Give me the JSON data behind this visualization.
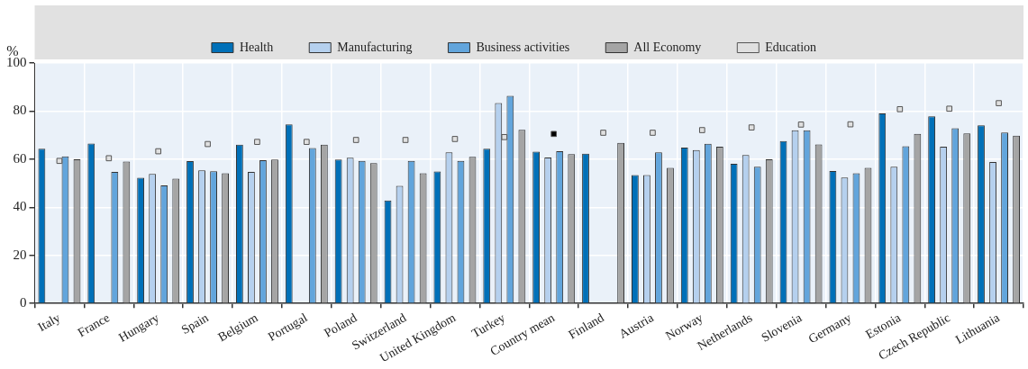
{
  "chart_data": {
    "type": "bar",
    "ylabel": "%",
    "categories": [
      "Italy",
      "France",
      "Hungary",
      "Spain",
      "Belgium",
      "Portugal",
      "Poland",
      "Switzerland",
      "United Kingdom",
      "Turkey",
      "Country mean",
      "Finland",
      "Austria",
      "Norway",
      "Netherlands",
      "Slovenia",
      "Germany",
      "Estonia",
      "Czech Republic",
      "Lithuania"
    ],
    "series": [
      {
        "name": "Health",
        "color": "#0070b8",
        "values": [
          64.4,
          66.5,
          52.3,
          59.2,
          66,
          74.5,
          59.9,
          42.8,
          54.9,
          64.4,
          63.1,
          62.3,
          53.4,
          64.8,
          58.1,
          67.5,
          55.1,
          79,
          77.8,
          74.1
        ]
      },
      {
        "name": "Manufacturing",
        "color": "#b5d0ee",
        "values": [
          null,
          null,
          53.9,
          55.4,
          54.7,
          null,
          60.6,
          48.9,
          62.9,
          83.3,
          60.7,
          null,
          53.4,
          63.8,
          61.7,
          72,
          52.4,
          56.9,
          65.2,
          58.8
        ]
      },
      {
        "name": "Business activities",
        "color": "#62a5dc",
        "values": [
          61.2,
          54.7,
          49.1,
          55,
          59.6,
          64.6,
          59.3,
          59.3,
          59.3,
          86.3,
          63.3,
          null,
          62.9,
          66.4,
          56.9,
          72,
          54.2,
          65.4,
          72.9,
          71.1
        ]
      },
      {
        "name": "All Economy",
        "color": "#a5a5a5",
        "values": [
          60,
          59,
          51.9,
          54.2,
          59.9,
          66,
          58.4,
          54.2,
          61,
          72.2,
          62.1,
          66.8,
          56.4,
          65.2,
          60,
          66.1,
          56.4,
          70.5,
          70.7,
          69.8
        ]
      },
      {
        "name": "Education",
        "type": "scatter",
        "marker": "square",
        "color": "#e0e0e0",
        "colors": [
          "#e0e0e0",
          "#e0e0e0",
          "#e0e0e0",
          "#e0e0e0",
          "#e0e0e0",
          "#e0e0e0",
          "#e0e0e0",
          "#e0e0e0",
          "#e0e0e0",
          "#e0e0e0",
          "#000000",
          "#e0e0e0",
          "#e0e0e0",
          "#e0e0e0",
          "#e0e0e0",
          "#e0e0e0",
          "#e0e0e0",
          "#e0e0e0",
          "#e0e0e0",
          "#e0e0e0"
        ],
        "values": [
          59.3,
          60.4,
          63.3,
          66.3,
          67.2,
          67.2,
          68,
          68,
          68.4,
          69.2,
          70.5,
          71,
          71,
          72.1,
          73.2,
          74.4,
          74.5,
          80.8,
          81,
          83.3
        ]
      }
    ],
    "ylim": [
      0,
      100
    ],
    "yticks": [
      0,
      20,
      40,
      60,
      80,
      100
    ],
    "grid": true,
    "legend": "top"
  }
}
